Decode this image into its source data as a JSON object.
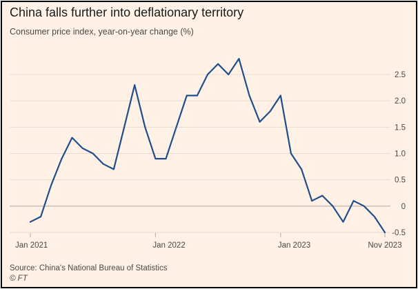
{
  "chart_data": {
    "type": "line",
    "title": "China falls further into deflationary territory",
    "subtitle": "Consumer price index, year-on-year change (%)",
    "xlabel": "",
    "ylabel": "",
    "x": [
      "2021-01",
      "2021-02",
      "2021-03",
      "2021-04",
      "2021-05",
      "2021-06",
      "2021-07",
      "2021-08",
      "2021-09",
      "2021-10",
      "2021-11",
      "2021-12",
      "2022-01",
      "2022-02",
      "2022-03",
      "2022-04",
      "2022-05",
      "2022-06",
      "2022-07",
      "2022-08",
      "2022-09",
      "2022-10",
      "2022-11",
      "2022-12",
      "2023-01",
      "2023-02",
      "2023-03",
      "2023-04",
      "2023-05",
      "2023-06",
      "2023-07",
      "2023-08",
      "2023-09",
      "2023-10",
      "2023-11"
    ],
    "series": [
      {
        "values": [
          -0.3,
          -0.2,
          0.4,
          0.9,
          1.3,
          1.1,
          1.0,
          0.8,
          0.7,
          1.5,
          2.3,
          1.5,
          0.9,
          0.9,
          1.5,
          2.1,
          2.1,
          2.5,
          2.7,
          2.5,
          2.8,
          2.1,
          1.6,
          1.8,
          2.1,
          1.0,
          0.7,
          0.1,
          0.2,
          0.0,
          -0.3,
          0.1,
          0.0,
          -0.2,
          -0.5
        ]
      }
    ],
    "ylim": [
      -0.5,
      2.5
    ],
    "yticks": [
      "2.5",
      "2.0",
      "1.5",
      "1.0",
      "0.5",
      "0",
      "-0.5"
    ],
    "ytick_values": [
      2.5,
      2.0,
      1.5,
      1.0,
      0.5,
      0,
      -0.5
    ],
    "xticks": [
      "Jan 2021",
      "Jan 2022",
      "Jan 2023",
      "Nov 2023"
    ],
    "xtick_values": [
      "2021-01",
      "2022-01",
      "2023-01",
      "2023-11"
    ],
    "grid": true,
    "colors": {
      "background": "#fff1e5",
      "line": "#1f4e8c",
      "grid": "#e6d9ce",
      "zero_line": "#b3a9a0"
    }
  },
  "footer": {
    "source": "Source: China's National Bureau of Statistics",
    "credit": "© FT"
  }
}
